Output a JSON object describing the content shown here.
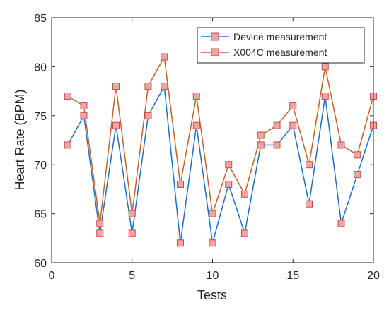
{
  "chart_data": {
    "type": "line",
    "title": "",
    "xlabel": "Tests",
    "ylabel": "Heart Rate (BPM)",
    "xlim": [
      0,
      20
    ],
    "ylim": [
      60,
      85
    ],
    "xticks": [
      0,
      5,
      10,
      15,
      20
    ],
    "yticks": [
      60,
      65,
      70,
      75,
      80,
      85
    ],
    "grid": false,
    "legend_position": "top-right",
    "x": [
      1,
      2,
      3,
      4,
      5,
      6,
      7,
      8,
      9,
      10,
      11,
      12,
      13,
      14,
      15,
      16,
      17,
      18,
      19,
      20
    ],
    "series": [
      {
        "name": "Device measurement",
        "color": "#1f6fc0",
        "marker_fill": "#f4a3a3",
        "marker_edge": "#c0504d",
        "values": [
          72,
          75,
          63,
          74,
          63,
          75,
          78,
          62,
          74,
          62,
          68,
          63,
          72,
          72,
          74,
          66,
          77,
          64,
          69,
          74
        ]
      },
      {
        "name": "X004C measurement",
        "color": "#c0622a",
        "marker_fill": "#f4a3a3",
        "marker_edge": "#c0504d",
        "values": [
          77,
          76,
          64,
          78,
          65,
          78,
          81,
          68,
          77,
          65,
          70,
          67,
          73,
          74,
          76,
          70,
          80,
          72,
          71,
          77
        ]
      }
    ]
  }
}
